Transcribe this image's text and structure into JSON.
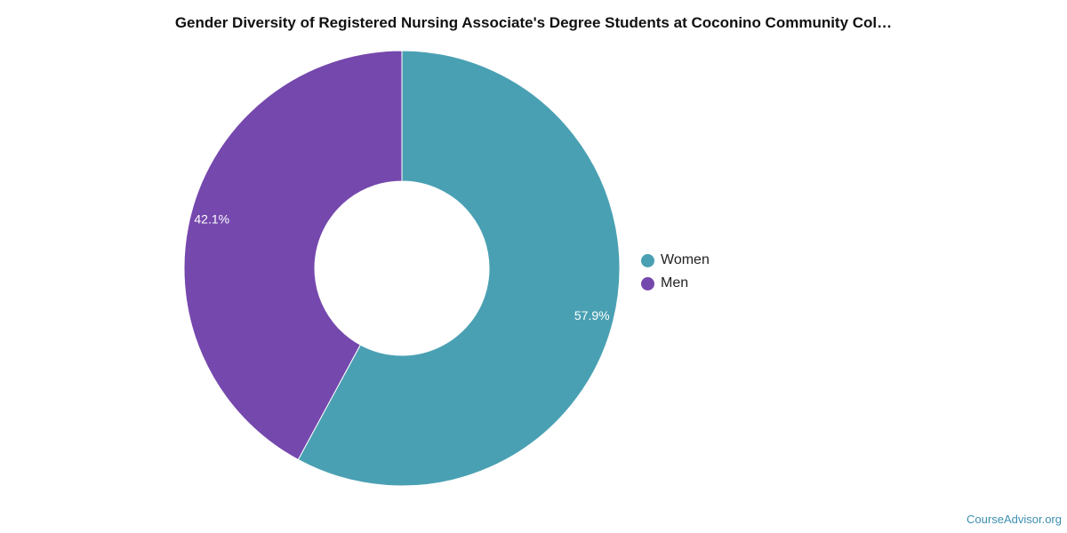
{
  "chart_data": {
    "type": "pie",
    "title": "Gender Diversity of Registered Nursing Associate's Degree Students at Coconino Community Col…",
    "categories": [
      "Women",
      "Men"
    ],
    "values": [
      57.9,
      42.1
    ],
    "labels": [
      "57.9%",
      "42.1%"
    ],
    "colors": [
      "#4aa0b3",
      "#7548ad"
    ],
    "donut": true,
    "legend_position": "right"
  },
  "credit": {
    "text": "CourseAdvisor.org",
    "color": "#3d8fb0"
  }
}
